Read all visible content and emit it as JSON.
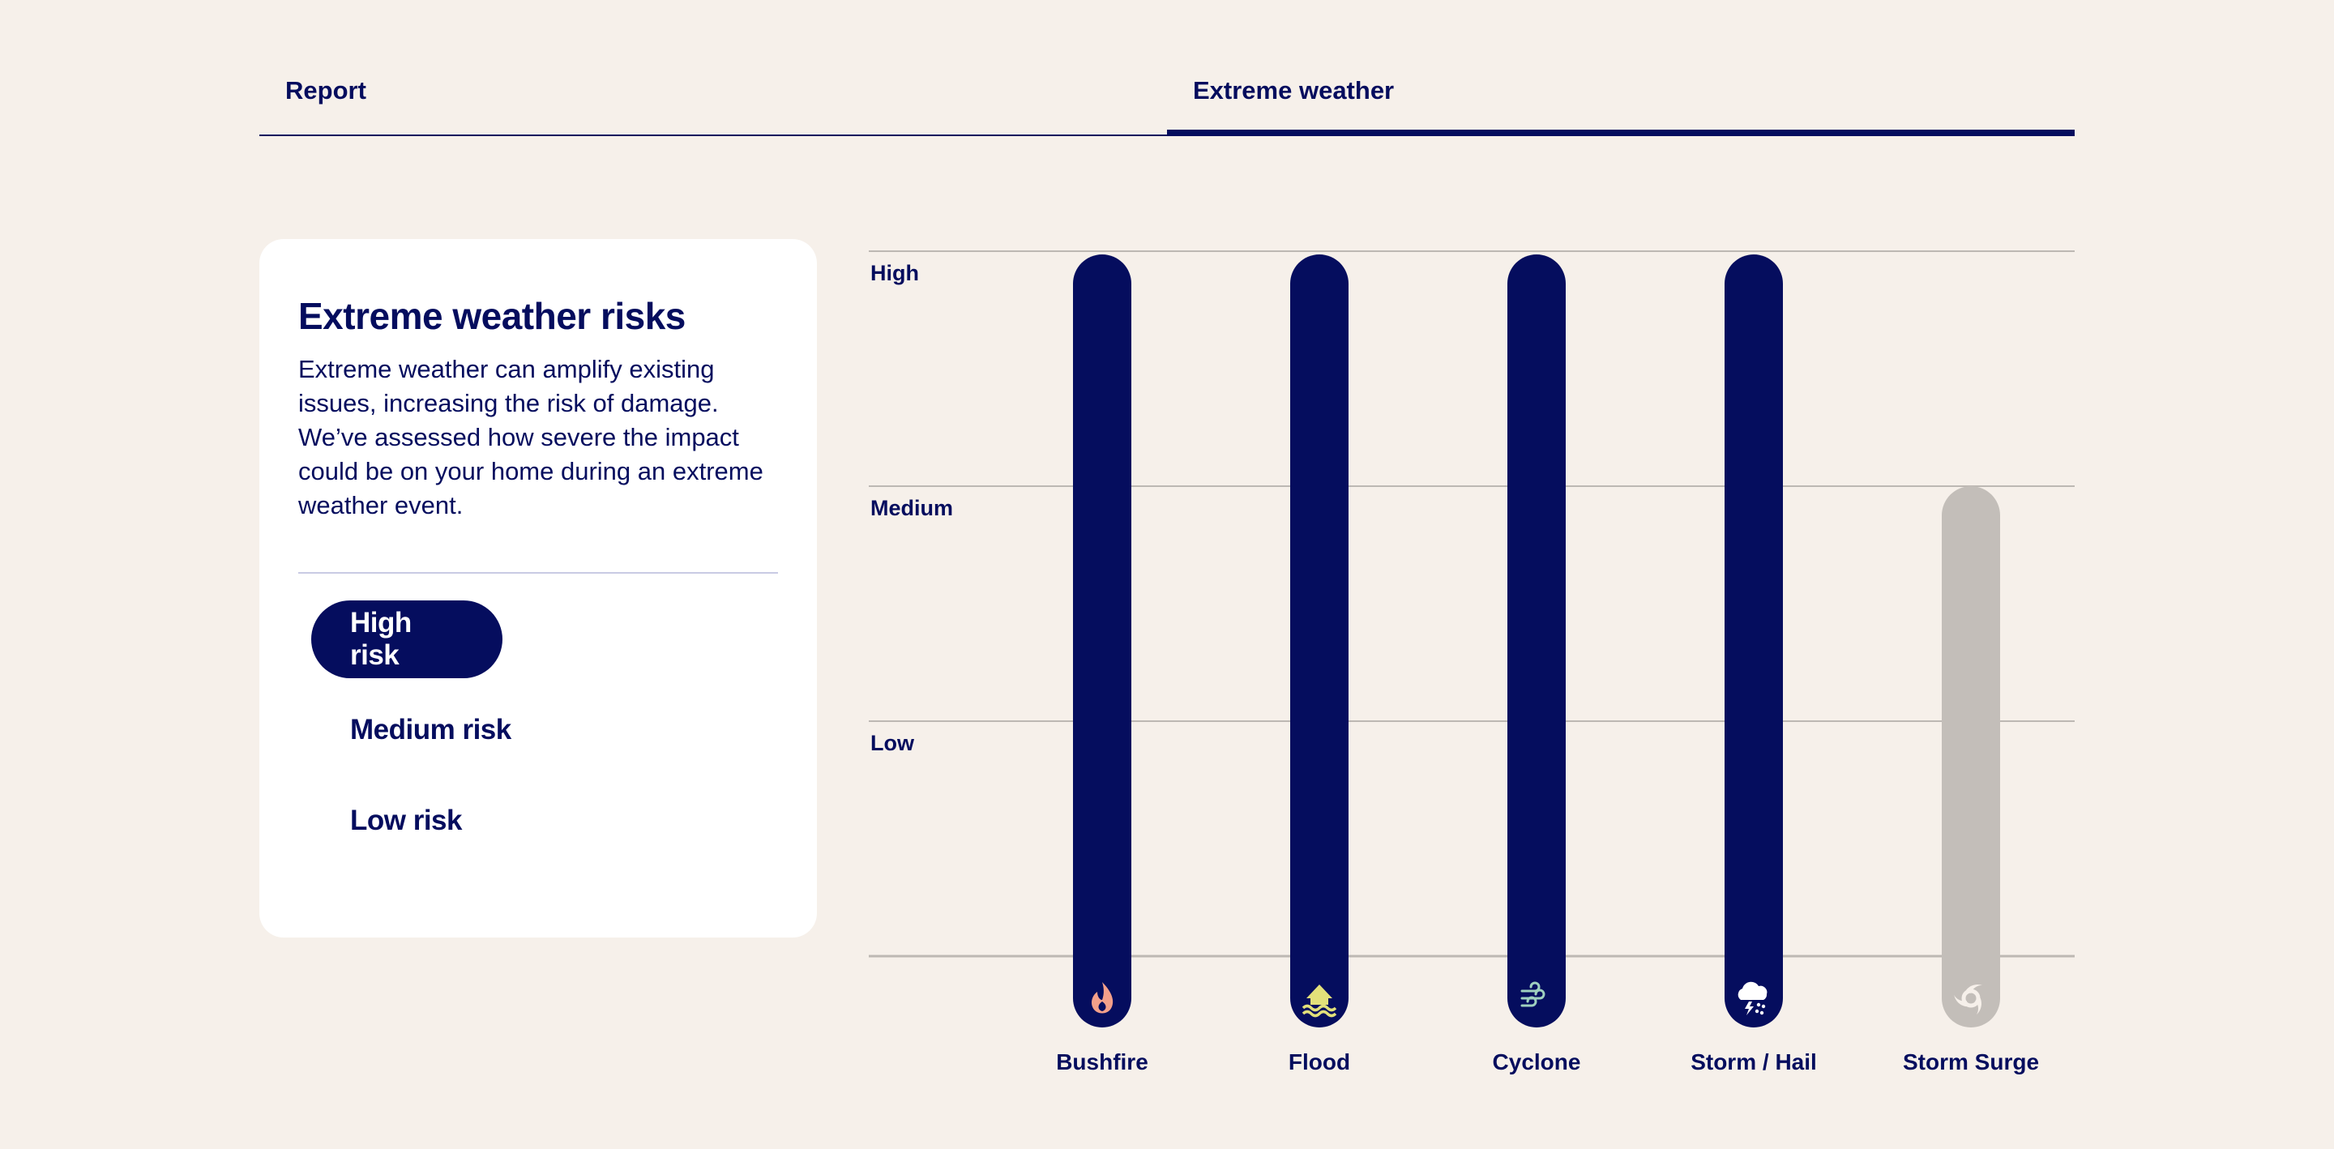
{
  "tabs": [
    {
      "label": "Report",
      "active": false
    },
    {
      "label": "Extreme weather",
      "active": true
    }
  ],
  "card": {
    "title": "Extreme weather risks",
    "description": "Extreme weather can amplify existing issues, increasing the risk of damage. We’ve assessed how severe the impact could be on your home during an extreme weather event.",
    "filters": [
      {
        "label": "High risk",
        "selected": true
      },
      {
        "label": "Medium risk",
        "selected": false
      },
      {
        "label": "Low risk",
        "selected": false
      }
    ]
  },
  "chart_data": {
    "type": "bar",
    "y_levels": [
      "High",
      "Medium",
      "Low"
    ],
    "categories": [
      "Bushfire",
      "Flood",
      "Cyclone",
      "Storm / Hail",
      "Storm Surge"
    ],
    "values": [
      "High",
      "High",
      "High",
      "High",
      "Medium"
    ],
    "highlighted": [
      true,
      true,
      true,
      true,
      false
    ],
    "icons": [
      "fire-icon",
      "flood-icon",
      "wind-icon",
      "storm-hail-icon",
      "cyclone-icon"
    ],
    "colors": {
      "highlight": "#050d5e",
      "muted": "#c3beb9",
      "fire": "#f4a08a",
      "flood": "#e3e07a",
      "wind": "#9fd0bf",
      "storm": "#ffffff",
      "cyclone": "#f6f0ea"
    }
  }
}
